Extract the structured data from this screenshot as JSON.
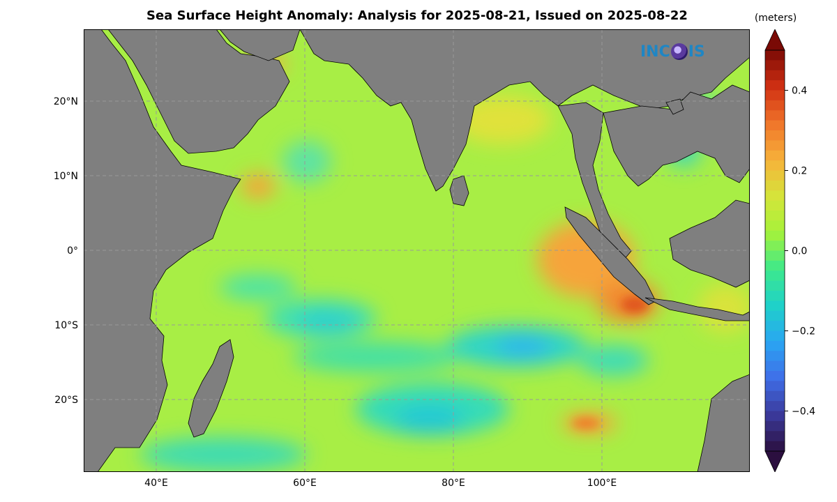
{
  "title": "Sea Surface Height Anomaly: Analysis for 2025-08-21, Issued on 2025-08-22",
  "colorbar": {
    "units": "(meters)",
    "ticks": [
      "0.4",
      "0.2",
      "0.0",
      "−0.2",
      "−0.4"
    ],
    "range": [
      -0.5,
      0.5
    ],
    "colors_low_to_high": [
      "#2b0f3f",
      "#3b3a9b",
      "#3f6ee8",
      "#2aa6f2",
      "#1fd2c8",
      "#3ee98a",
      "#a6f23a",
      "#d6e43a",
      "#f7b13a",
      "#f0742a",
      "#cf2f12",
      "#7a0a05"
    ]
  },
  "map": {
    "lat_ticks": [
      "20°N",
      "10°N",
      "0°",
      "10°S",
      "20°S"
    ],
    "lon_ticks": [
      "40°E",
      "60°E",
      "80°E",
      "100°E"
    ],
    "land_color": "#7f7f7f",
    "ocean_base_color": "#a8ee45",
    "logo": "INCOIS"
  }
}
